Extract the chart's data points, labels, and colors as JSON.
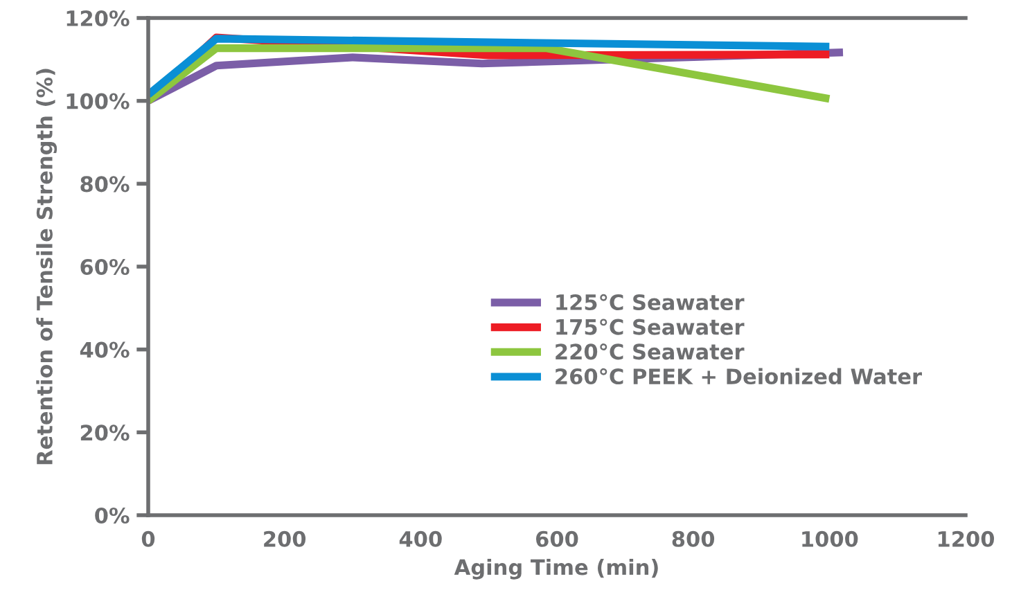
{
  "chart_data": {
    "type": "line",
    "xlabel": "Aging Time (min)",
    "ylabel": "Retention of Tensile Strength (%)",
    "xlim": [
      0,
      1200
    ],
    "xticks": [
      0,
      200,
      400,
      600,
      800,
      1000,
      1200
    ],
    "ylim": [
      0,
      120
    ],
    "yticks": [
      {
        "value": 0,
        "label": "0%"
      },
      {
        "value": 20,
        "label": "20%"
      },
      {
        "value": 40,
        "label": "40%"
      },
      {
        "value": 60,
        "label": "60%"
      },
      {
        "value": 80,
        "label": "80%"
      },
      {
        "value": 100,
        "label": "100%"
      },
      {
        "value": 120,
        "label": "120%"
      }
    ],
    "grid": false,
    "legend": "right",
    "marker": "none",
    "line_style": "solid",
    "series": [
      {
        "name": "125°C Seawater",
        "color": "#7b5ea7",
        "x": [
          0,
          100,
          300,
          490,
          1020
        ],
        "values": [
          100,
          108.5,
          110.5,
          109,
          111.7
        ]
      },
      {
        "name": "175°C Seawater",
        "color": "#ed1c24",
        "x": [
          0,
          100,
          500,
          1000
        ],
        "values": [
          100,
          115.3,
          111,
          111.2
        ]
      },
      {
        "name": "220°C Seawater",
        "color": "#8dc63f",
        "x": [
          0,
          100,
          585,
          1000
        ],
        "values": [
          100,
          112.7,
          112.7,
          100.5
        ]
      },
      {
        "name": "260°C PEEK + Deionized Water",
        "color": "#0a8fd5",
        "x": [
          0,
          100,
          1000
        ],
        "values": [
          101.5,
          115,
          113.1
        ]
      }
    ]
  }
}
